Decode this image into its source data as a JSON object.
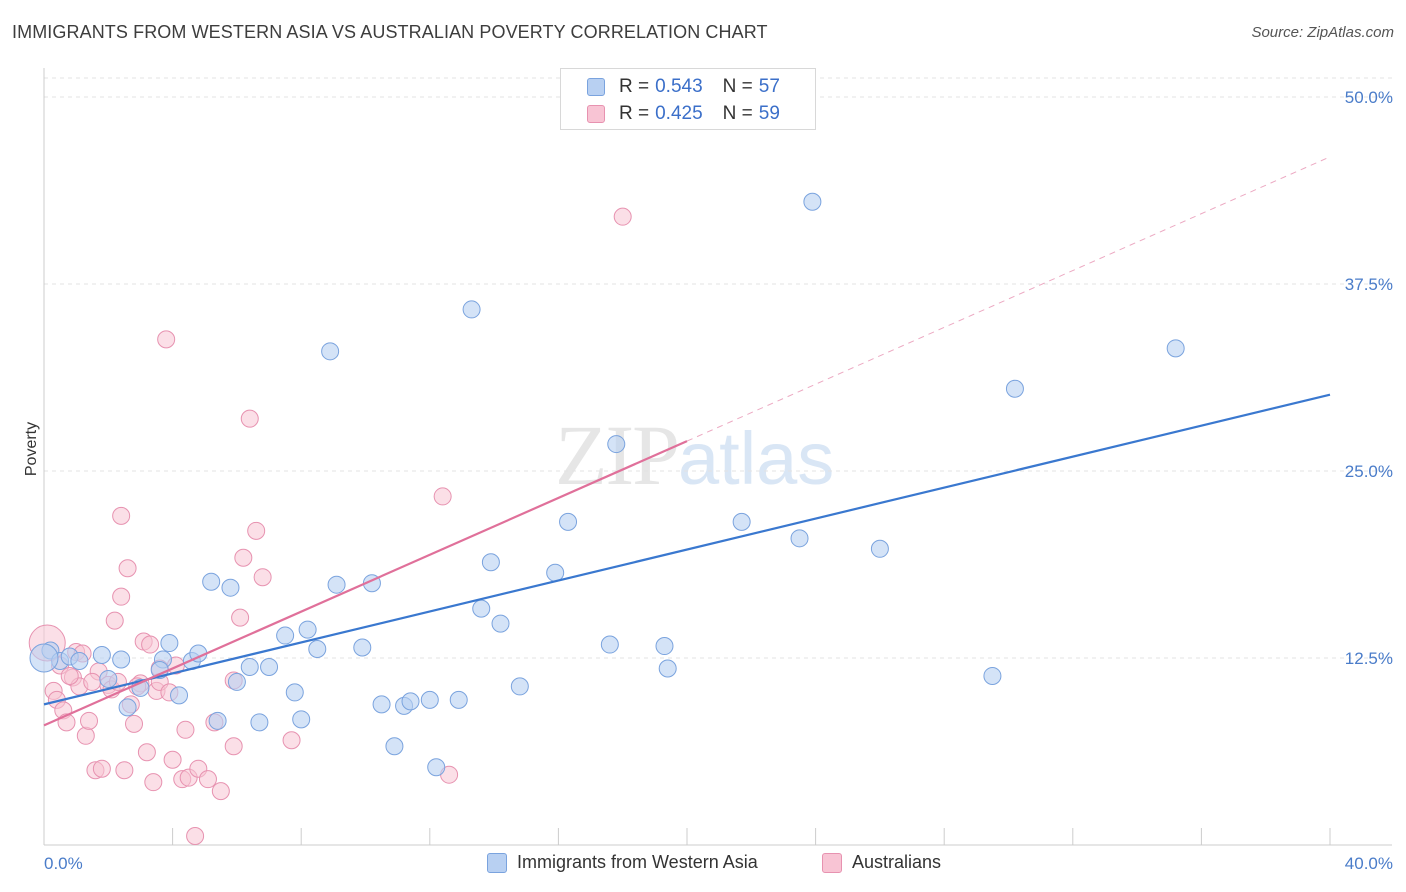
{
  "title": "IMMIGRANTS FROM WESTERN ASIA VS AUSTRALIAN POVERTY CORRELATION CHART",
  "source": "Source: ZipAtlas.com",
  "watermark": {
    "zip": "ZIP",
    "atlas": "atlas"
  },
  "legend_top": {
    "series1": {
      "r_label": "R =",
      "r_value": "0.543",
      "n_label": "N =",
      "n_value": "57"
    },
    "series2": {
      "r_label": "R =",
      "r_value": "0.425",
      "n_label": "N =",
      "n_value": "59"
    }
  },
  "legend_bottom": {
    "series1": "Immigrants from Western Asia",
    "series2": "Australians"
  },
  "colors": {
    "blue_fill": "#b8d0f2",
    "blue_stroke": "#7aa3de",
    "blue_line": "#3a78cf",
    "pink_fill": "#f8c4d4",
    "pink_stroke": "#e792b0",
    "pink_line": "#e0709a",
    "tick_label": "#4a7cc9",
    "grid": "#e3e3e3"
  },
  "chart_data": {
    "type": "scatter",
    "title": "IMMIGRANTS FROM WESTERN ASIA VS AUSTRALIAN POVERTY CORRELATION CHART",
    "xlabel": "",
    "ylabel": "Poverty",
    "xlim": [
      0,
      40
    ],
    "ylim": [
      0,
      50
    ],
    "x_tick_labels": [
      "0.0%",
      "40.0%"
    ],
    "y_ticks": [
      12.5,
      25.0,
      37.5,
      50.0
    ],
    "y_tick_labels": [
      "12.5%",
      "25.0%",
      "37.5%",
      "50.0%"
    ],
    "grid": true,
    "legend_position": "top-center",
    "series": [
      {
        "name": "Immigrants from Western Asia",
        "color": "blue",
        "stats": {
          "R": 0.543,
          "N": 57
        },
        "trend": {
          "x": [
            0,
            40
          ],
          "y": [
            9.4,
            30.1
          ],
          "dashed_extension": false
        },
        "points": [
          [
            0.2,
            13.0
          ],
          [
            0.5,
            12.3
          ],
          [
            0.8,
            12.6
          ],
          [
            1.1,
            12.3
          ],
          [
            1.8,
            12.7
          ],
          [
            2.4,
            12.4
          ],
          [
            2.0,
            11.1
          ],
          [
            3.0,
            10.5
          ],
          [
            2.6,
            9.2
          ],
          [
            3.7,
            12.4
          ],
          [
            3.6,
            11.7
          ],
          [
            3.9,
            13.5
          ],
          [
            4.2,
            10.0
          ],
          [
            4.6,
            12.3
          ],
          [
            4.8,
            12.8
          ],
          [
            5.2,
            17.6
          ],
          [
            5.4,
            8.3
          ],
          [
            5.8,
            17.2
          ],
          [
            6.0,
            10.9
          ],
          [
            6.4,
            11.9
          ],
          [
            6.7,
            8.2
          ],
          [
            7.0,
            11.9
          ],
          [
            7.5,
            14.0
          ],
          [
            7.8,
            10.2
          ],
          [
            8.0,
            8.4
          ],
          [
            8.2,
            14.4
          ],
          [
            8.5,
            13.1
          ],
          [
            8.9,
            33.0
          ],
          [
            9.1,
            17.4
          ],
          [
            9.9,
            13.2
          ],
          [
            10.2,
            17.5
          ],
          [
            10.5,
            9.4
          ],
          [
            10.9,
            6.6
          ],
          [
            11.2,
            9.3
          ],
          [
            11.4,
            9.6
          ],
          [
            12.0,
            9.7
          ],
          [
            12.2,
            5.2
          ],
          [
            12.9,
            9.7
          ],
          [
            13.3,
            35.8
          ],
          [
            13.6,
            15.8
          ],
          [
            13.9,
            18.9
          ],
          [
            14.2,
            14.8
          ],
          [
            14.8,
            10.6
          ],
          [
            15.9,
            18.2
          ],
          [
            16.3,
            21.6
          ],
          [
            17.6,
            13.4
          ],
          [
            17.8,
            26.8
          ],
          [
            19.3,
            13.3
          ],
          [
            19.4,
            11.8
          ],
          [
            21.7,
            21.6
          ],
          [
            23.5,
            20.5
          ],
          [
            23.9,
            43.0
          ],
          [
            26.0,
            19.8
          ],
          [
            29.5,
            11.3
          ],
          [
            30.2,
            30.5
          ],
          [
            35.2,
            33.2
          ],
          [
            0.0,
            12.5
          ]
        ]
      },
      {
        "name": "Australians",
        "color": "pink",
        "stats": {
          "R": 0.425,
          "N": 59
        },
        "trend": {
          "x": [
            0,
            20
          ],
          "y": [
            8.0,
            27.0
          ],
          "dashed_extension": {
            "x": [
              20,
              40
            ],
            "y": [
              27.0,
              46.0
            ]
          }
        },
        "points": [
          [
            0.1,
            13.5
          ],
          [
            0.3,
            10.3
          ],
          [
            0.4,
            9.7
          ],
          [
            0.6,
            9.0
          ],
          [
            0.7,
            8.2
          ],
          [
            0.9,
            11.2
          ],
          [
            1.0,
            12.9
          ],
          [
            1.1,
            10.6
          ],
          [
            1.3,
            7.3
          ],
          [
            1.4,
            8.3
          ],
          [
            1.6,
            5.0
          ],
          [
            1.7,
            11.6
          ],
          [
            1.8,
            5.1
          ],
          [
            2.0,
            10.7
          ],
          [
            2.1,
            10.4
          ],
          [
            2.2,
            15.0
          ],
          [
            2.3,
            10.9
          ],
          [
            2.4,
            16.6
          ],
          [
            2.4,
            22.0
          ],
          [
            2.5,
            5.0
          ],
          [
            2.6,
            18.5
          ],
          [
            2.7,
            9.4
          ],
          [
            2.8,
            8.1
          ],
          [
            3.0,
            10.8
          ],
          [
            3.1,
            13.6
          ],
          [
            3.2,
            6.2
          ],
          [
            3.3,
            13.4
          ],
          [
            3.4,
            4.2
          ],
          [
            3.5,
            10.3
          ],
          [
            3.6,
            10.9
          ],
          [
            3.6,
            11.8
          ],
          [
            3.8,
            33.8
          ],
          [
            4.0,
            5.7
          ],
          [
            4.3,
            4.4
          ],
          [
            4.4,
            7.7
          ],
          [
            4.5,
            4.5
          ],
          [
            4.7,
            0.6
          ],
          [
            4.8,
            5.1
          ],
          [
            5.1,
            4.4
          ],
          [
            5.3,
            8.2
          ],
          [
            5.5,
            3.6
          ],
          [
            5.9,
            11.0
          ],
          [
            5.9,
            6.6
          ],
          [
            6.1,
            15.2
          ],
          [
            6.2,
            19.2
          ],
          [
            6.4,
            28.5
          ],
          [
            6.6,
            21.0
          ],
          [
            6.8,
            17.9
          ],
          [
            7.7,
            7.0
          ],
          [
            12.4,
            23.3
          ],
          [
            12.6,
            4.7
          ],
          [
            18.0,
            42.0
          ],
          [
            0.5,
            12.0
          ],
          [
            0.8,
            11.3
          ],
          [
            1.5,
            10.9
          ],
          [
            2.9,
            10.6
          ],
          [
            3.9,
            10.2
          ],
          [
            4.1,
            12.0
          ],
          [
            1.2,
            12.8
          ]
        ]
      }
    ]
  }
}
